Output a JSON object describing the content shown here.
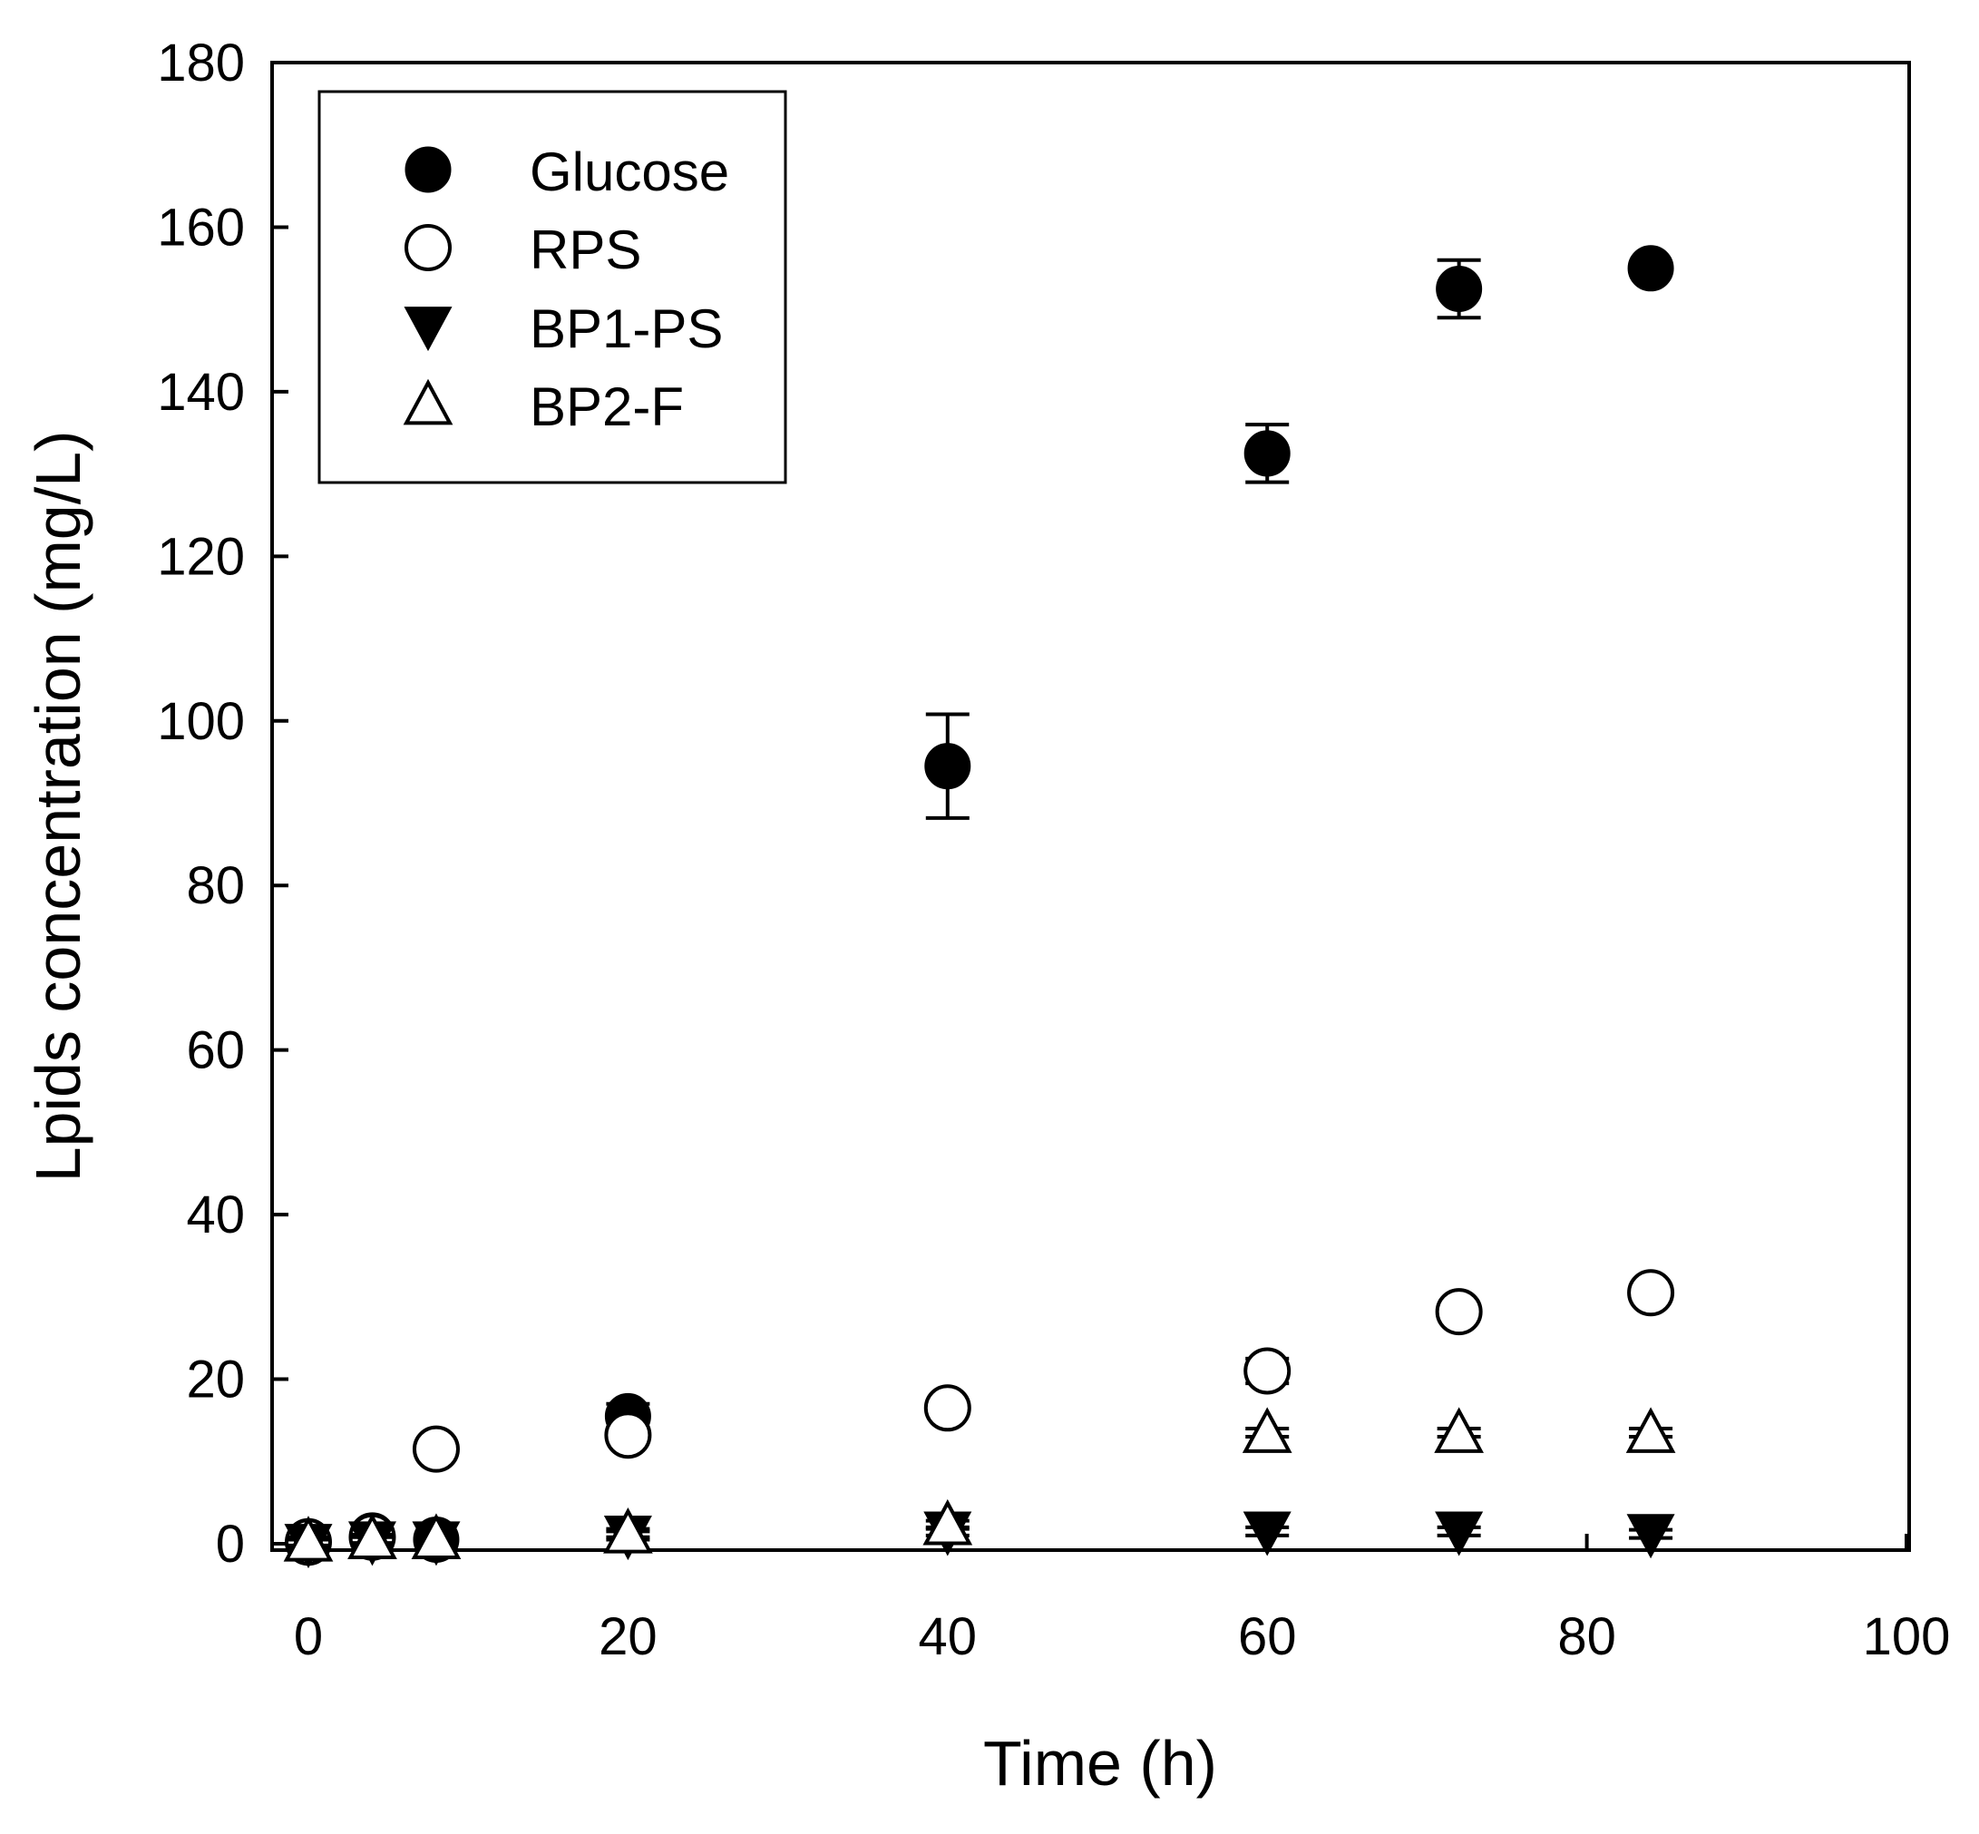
{
  "chart_data": {
    "type": "scatter",
    "title": "",
    "xlabel": "Time (h)",
    "ylabel": "Lpids concentration (mg/L)",
    "xlim": [
      0,
      100
    ],
    "ylim": [
      0,
      180
    ],
    "xticks": [
      0,
      20,
      40,
      60,
      80,
      100
    ],
    "yticks": [
      0,
      20,
      40,
      60,
      80,
      100,
      120,
      140,
      160,
      180
    ],
    "grid": false,
    "legend_position": "top-left",
    "series": [
      {
        "name": "Glucose",
        "marker": "filled-circle",
        "color": "#000000",
        "x": [
          0,
          4,
          8,
          20,
          40,
          60,
          72,
          84
        ],
        "y": [
          0.3,
          1.0,
          0.5,
          15.5,
          94.5,
          132.5,
          152.5,
          155.0
        ],
        "err": [
          0.5,
          0.5,
          0.5,
          1.5,
          6.3,
          3.5,
          3.5,
          0.5
        ]
      },
      {
        "name": "RPS",
        "marker": "open-circle",
        "color": "#000000",
        "x": [
          0,
          4,
          8,
          20,
          40,
          60,
          72,
          84
        ],
        "y": [
          0.2,
          0.8,
          11.5,
          13.2,
          16.5,
          21.0,
          28.2,
          30.5
        ],
        "err": [
          0.5,
          0.5,
          0.5,
          0.8,
          0.6,
          1.5,
          0.5,
          0.8
        ]
      },
      {
        "name": "BP1-PS",
        "marker": "filled-triangle-down",
        "color": "#000000",
        "x": [
          0,
          4,
          8,
          20,
          40,
          60,
          72,
          84
        ],
        "y": [
          0.0,
          0.3,
          0.3,
          1.0,
          1.5,
          1.5,
          1.5,
          1.2
        ],
        "err": [
          0.5,
          0.5,
          0.5,
          0.5,
          0.5,
          0.5,
          0.5,
          0.5
        ]
      },
      {
        "name": "BP2-F",
        "marker": "open-triangle-up",
        "color": "#000000",
        "x": [
          0,
          4,
          8,
          20,
          40,
          60,
          72,
          84
        ],
        "y": [
          0.3,
          0.6,
          0.6,
          1.3,
          2.3,
          13.5,
          13.5,
          13.5
        ],
        "err": [
          0.5,
          0.5,
          0.5,
          0.5,
          0.5,
          0.5,
          0.5,
          0.5
        ]
      }
    ]
  }
}
